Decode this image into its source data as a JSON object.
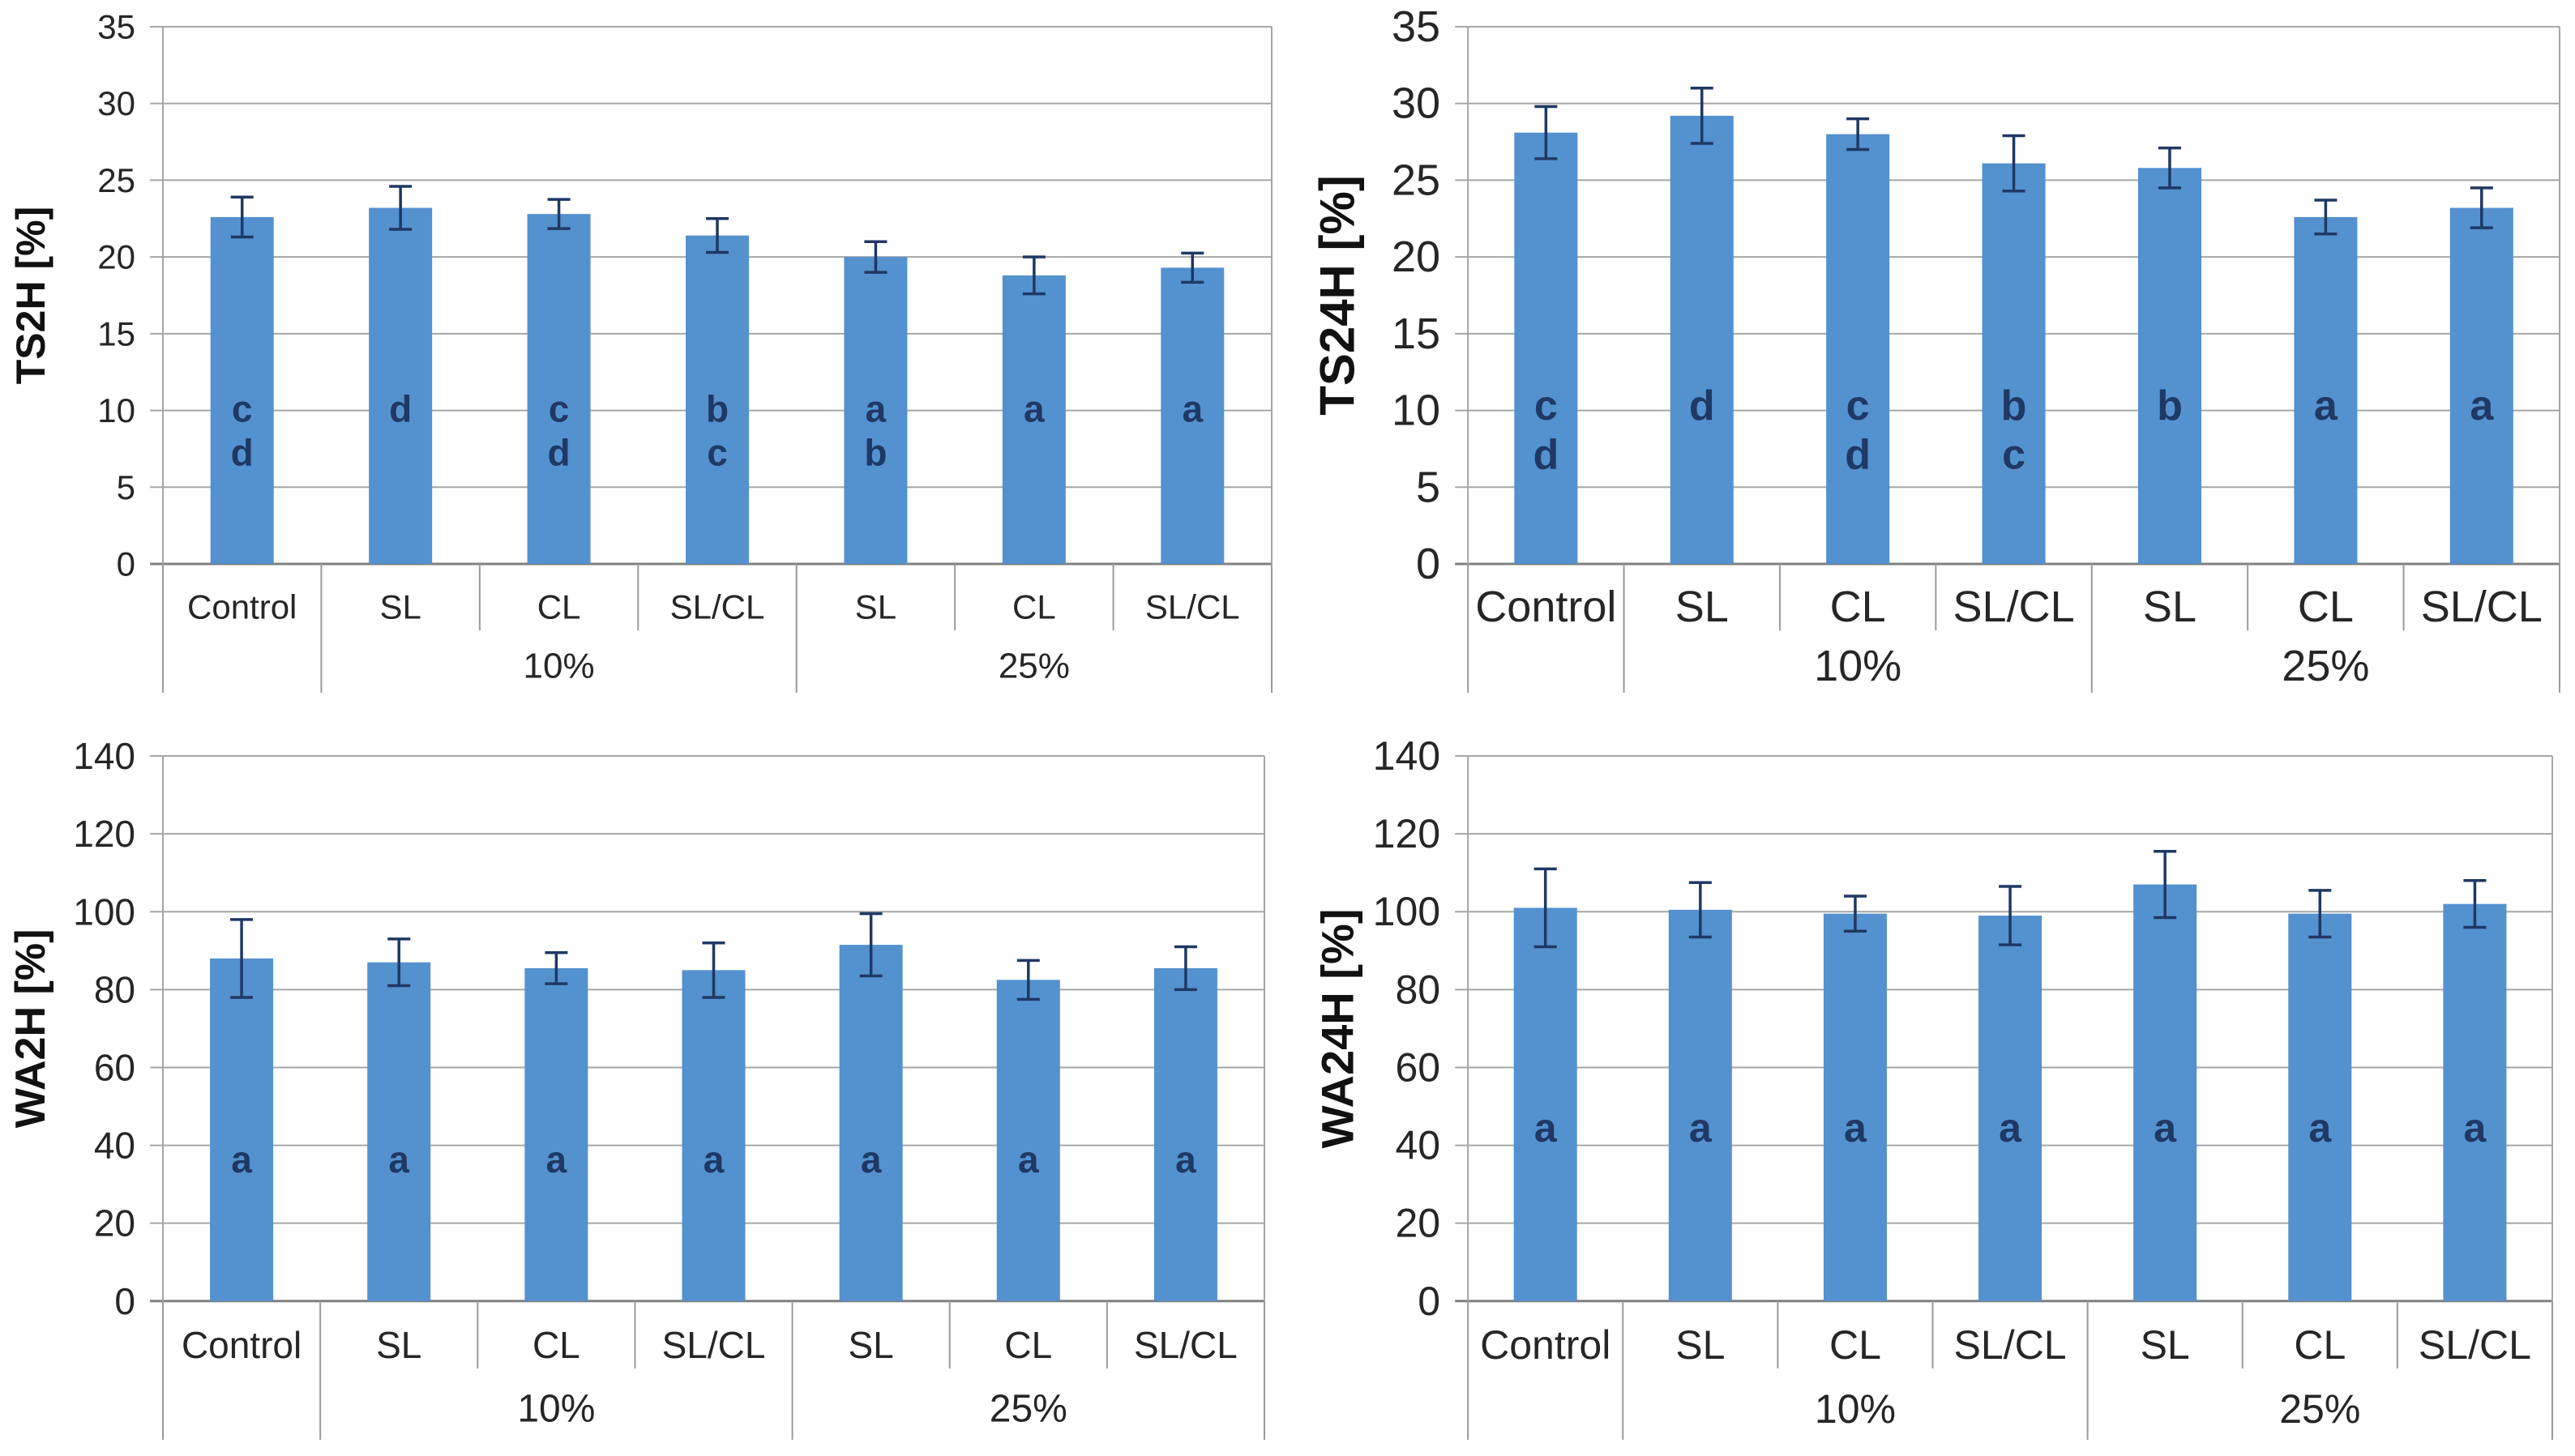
{
  "figure": {
    "description": "Four-panel bar chart figure: tensile strength (TS) and water absorption (WA) after 2h and 24h for Control and lignin-filled samples",
    "background": "#ffffff"
  },
  "colors": {
    "bar_fill": "#5491cf",
    "error_bar": "#1f3864",
    "letter": "#1f3864",
    "gridline": "#a6a6a6",
    "axis_line": "#808080",
    "separator": "#9b9b9b",
    "tick_text": "#262626",
    "title_text": "#111111"
  },
  "chart_data": [
    {
      "type": "bar",
      "title": "",
      "xlabel": "",
      "ylabel": "TS2H [%]",
      "ylim": [
        0,
        35
      ],
      "yticks": [
        0,
        5,
        10,
        15,
        20,
        25,
        30,
        35
      ],
      "grid": true,
      "legend": "none",
      "categories": [
        "Control",
        "SL",
        "CL",
        "SL/CL",
        "SL",
        "CL",
        "SL/CL"
      ],
      "group_labels": [
        {
          "label": "10%",
          "span": [
            1,
            3
          ]
        },
        {
          "label": "25%",
          "span": [
            4,
            6
          ]
        }
      ],
      "values": [
        22.6,
        23.2,
        22.8,
        21.4,
        20.0,
        18.8,
        19.3
      ],
      "errors": [
        1.3,
        1.4,
        0.95,
        1.1,
        1.0,
        1.2,
        0.95
      ],
      "letters": [
        [
          "c",
          "d"
        ],
        [
          "d"
        ],
        [
          "c",
          "d"
        ],
        [
          "b",
          "c"
        ],
        [
          "a",
          "b"
        ],
        [
          "a"
        ],
        [
          "a"
        ]
      ],
      "letters_anchor_value": 10.1
    },
    {
      "type": "bar",
      "title": "",
      "xlabel": "",
      "ylabel": "TS24H [%]",
      "ylim": [
        0,
        35
      ],
      "yticks": [
        0,
        5,
        10,
        15,
        20,
        25,
        30,
        35
      ],
      "grid": true,
      "legend": "none",
      "categories": [
        "Control",
        "SL",
        "CL",
        "SL/CL",
        "SL",
        "CL",
        "SL/CL"
      ],
      "group_labels": [
        {
          "label": "10%",
          "span": [
            1,
            3
          ]
        },
        {
          "label": "25%",
          "span": [
            4,
            6
          ]
        }
      ],
      "values": [
        28.1,
        29.2,
        28.0,
        26.1,
        25.8,
        22.6,
        23.2
      ],
      "errors": [
        1.7,
        1.8,
        1.0,
        1.8,
        1.3,
        1.1,
        1.3
      ],
      "letters": [
        [
          "c",
          "d"
        ],
        [
          "d"
        ],
        [
          "c",
          "d"
        ],
        [
          "b",
          "c"
        ],
        [
          "b"
        ],
        [
          "a"
        ],
        [
          "a"
        ]
      ],
      "letters_anchor_value": 10.3
    },
    {
      "type": "bar",
      "title": "",
      "xlabel": "",
      "ylabel": "WA2H [%]",
      "ylim": [
        0,
        140
      ],
      "yticks": [
        0,
        20,
        40,
        60,
        80,
        100,
        120,
        140
      ],
      "grid": true,
      "legend": "none",
      "categories": [
        "Control",
        "SL",
        "CL",
        "SL/CL",
        "SL",
        "CL",
        "SL/CL"
      ],
      "group_labels": [
        {
          "label": "10%",
          "span": [
            1,
            3
          ]
        },
        {
          "label": "25%",
          "span": [
            4,
            6
          ]
        }
      ],
      "values": [
        88,
        87,
        85.5,
        85,
        91.5,
        82.5,
        85.5
      ],
      "errors": [
        10,
        6,
        4,
        7,
        8,
        5,
        5.5
      ],
      "letters": [
        [
          "a"
        ],
        [
          "a"
        ],
        [
          "a"
        ],
        [
          "a"
        ],
        [
          "a"
        ],
        [
          "a"
        ],
        [
          "a"
        ]
      ],
      "letters_anchor_value": 36.4
    },
    {
      "type": "bar",
      "title": "",
      "xlabel": "",
      "ylabel": "WA24H [%]",
      "ylim": [
        0,
        140
      ],
      "yticks": [
        0,
        20,
        40,
        60,
        80,
        100,
        120,
        140
      ],
      "grid": true,
      "legend": "none",
      "categories": [
        "Control",
        "SL",
        "CL",
        "SL/CL",
        "SL",
        "CL",
        "SL/CL"
      ],
      "group_labels": [
        {
          "label": "10%",
          "span": [
            1,
            3
          ]
        },
        {
          "label": "25%",
          "span": [
            4,
            6
          ]
        }
      ],
      "values": [
        101,
        100.5,
        99.5,
        99,
        107,
        99.5,
        102
      ],
      "errors": [
        10,
        7,
        4.5,
        7.5,
        8.5,
        6,
        6
      ],
      "letters": [
        [
          "a"
        ],
        [
          "a"
        ],
        [
          "a"
        ],
        [
          "a"
        ],
        [
          "a"
        ],
        [
          "a"
        ],
        [
          "a"
        ]
      ],
      "letters_anchor_value": 44.5
    }
  ]
}
